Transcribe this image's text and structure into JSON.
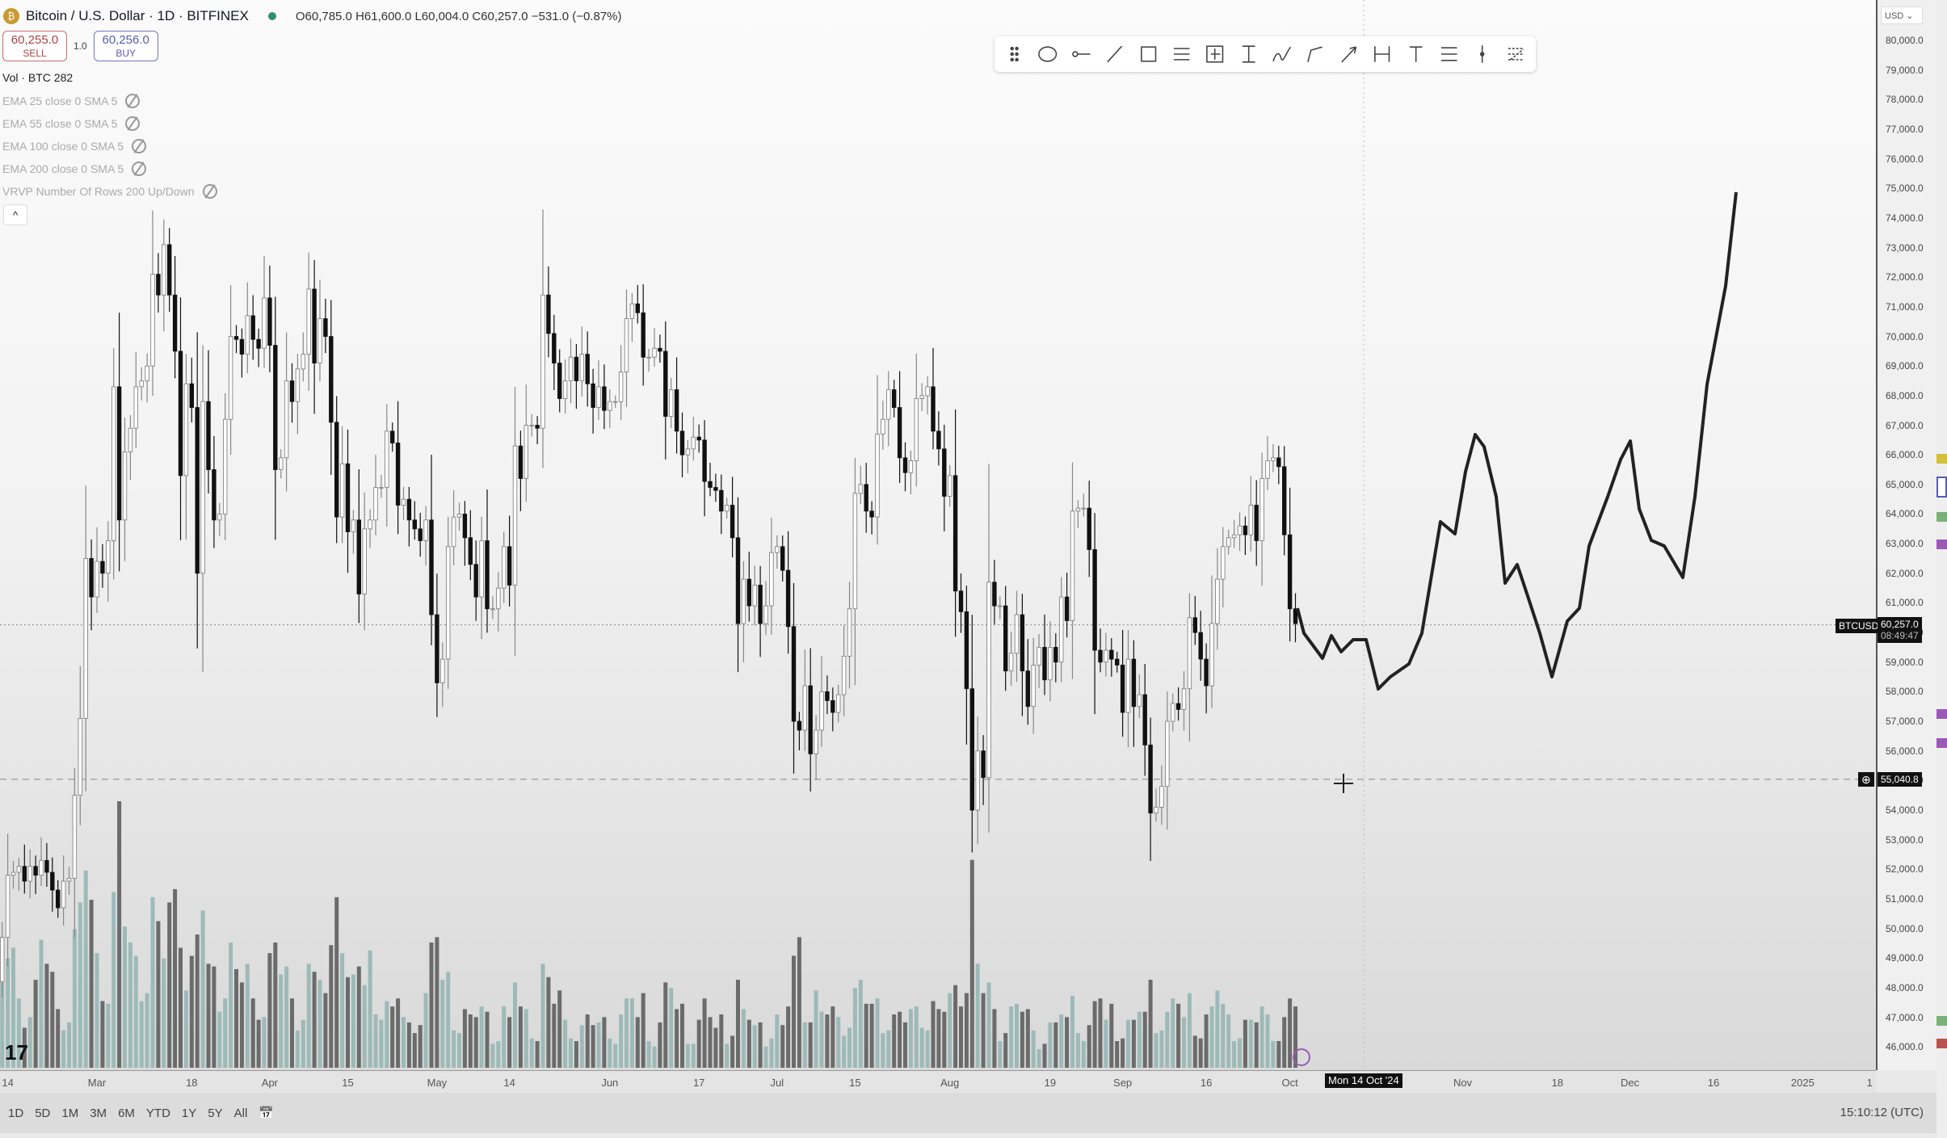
{
  "header": {
    "symbol": "Bitcoin / U.S. Dollar · 1D · BITFINEX",
    "coin_icon": "bitcoin-icon",
    "ohlc": "O60,785.0 H61,600.0 L60,004.0 C60,257.0 −531.0 (−0.87%)"
  },
  "trade": {
    "sell_price": "60,255.0",
    "sell_label": "SELL",
    "qty": "1.0",
    "buy_price": "60,256.0",
    "buy_label": "BUY"
  },
  "indicators": [
    "Vol · BTC  282",
    "EMA 25 close 0 SMA 5",
    "EMA 55 close 0 SMA 5",
    "EMA 100 close 0 SMA 5",
    "EMA 200 close 0 SMA 5",
    "VRVP Number Of Rows 200 Up/Down"
  ],
  "toolbar_icons": [
    "drag-handle-icon",
    "ellipse-icon",
    "ray-icon",
    "trend-line-icon",
    "rectangle-icon",
    "parallel-channel-icon",
    "long-position-icon",
    "date-price-range-icon",
    "brush-icon",
    "path-icon",
    "arrow-icon",
    "date-range-icon",
    "text-icon",
    "fib-retracement-icon",
    "vertical-line-icon",
    "regression-trend-icon"
  ],
  "price_axis": {
    "currency": "USD",
    "current_tag": "BTCUSD",
    "current_price": "60,257.0",
    "countdown": "08:49:47",
    "crosshair_price": "55,040.8"
  },
  "time_axis": {
    "crosshair_date": "Mon 14 Oct '24"
  },
  "bottom": {
    "ranges": [
      "1D",
      "5D",
      "1M",
      "3M",
      "6M",
      "YTD",
      "1Y",
      "5Y",
      "All"
    ],
    "time": "15:10:12 (UTC)"
  },
  "colors": {
    "up": "#ffffff",
    "down": "#111111",
    "vol_up": "#9dbab8",
    "vol_down": "#6b6b6b",
    "drawing": "#222222"
  },
  "chart_data": {
    "type": "candlestick",
    "start_date": "2024-02-13",
    "ylim": [
      45500,
      80500
    ],
    "yticks": [
      80000,
      79000,
      78000,
      77000,
      76000,
      75000,
      74000,
      73000,
      72000,
      71000,
      70000,
      69000,
      68000,
      67000,
      66000,
      65000,
      64000,
      63000,
      62000,
      61000,
      60000,
      59000,
      58000,
      57000,
      56000,
      55000,
      54000,
      53000,
      52000,
      51000,
      50000,
      49000,
      48000,
      47000,
      46000
    ],
    "xticks": [
      {
        "label": "14",
        "date": "2024-02-14"
      },
      {
        "label": "Mar",
        "date": "2024-03-01"
      },
      {
        "label": "18",
        "date": "2024-03-18"
      },
      {
        "label": "Apr",
        "date": "2024-04-01"
      },
      {
        "label": "15",
        "date": "2024-04-15"
      },
      {
        "label": "May",
        "date": "2024-05-01"
      },
      {
        "label": "14",
        "date": "2024-05-14"
      },
      {
        "label": "Jun",
        "date": "2024-06-01"
      },
      {
        "label": "17",
        "date": "2024-06-17"
      },
      {
        "label": "Jul",
        "date": "2024-07-01"
      },
      {
        "label": "15",
        "date": "2024-07-15"
      },
      {
        "label": "Aug",
        "date": "2024-08-01"
      },
      {
        "label": "19",
        "date": "2024-08-19"
      },
      {
        "label": "Sep",
        "date": "2024-09-01"
      },
      {
        "label": "16",
        "date": "2024-09-16"
      },
      {
        "label": "Oct",
        "date": "2024-10-01"
      },
      {
        "label": "Nov",
        "date": "2024-11-01"
      },
      {
        "label": "18",
        "date": "2024-11-18"
      },
      {
        "label": "Dec",
        "date": "2024-12-01"
      },
      {
        "label": "16",
        "date": "2024-12-16"
      },
      {
        "label": "2025",
        "date": "2025-01-01"
      },
      {
        "label": "1",
        "date": "2025-01-13"
      }
    ],
    "close": [
      49700,
      51800,
      51900,
      52100,
      51600,
      52100,
      51800,
      52300,
      51900,
      51300,
      50700,
      51600,
      51700,
      54500,
      57100,
      62500,
      61200,
      62400,
      62000,
      63100,
      68300,
      63800,
      66100,
      66900,
      68300,
      68500,
      69000,
      72100,
      71400,
      73100,
      71400,
      69500,
      65300,
      68400,
      67600,
      62000,
      67800,
      65500,
      63800,
      64000,
      67200,
      70000,
      69900,
      69400,
      70700,
      69900,
      69600,
      71300,
      69700,
      65500,
      65900,
      68500,
      67800,
      68900,
      69400,
      71600,
      69100,
      70600,
      70000,
      67100,
      63900,
      65700,
      63400,
      63800,
      61300,
      63500,
      63800,
      64900,
      64900,
      66800,
      66400,
      64300,
      64500,
      63800,
      63500,
      63100,
      63800,
      60600,
      58300,
      59100,
      62900,
      63900,
      64000,
      63200,
      62300,
      61200,
      63100,
      60800,
      60800,
      61500,
      62900,
      61600,
      66300,
      65200,
      67000,
      67000,
      66900,
      71400,
      70100,
      69100,
      67900,
      68500,
      69300,
      68500,
      69400,
      68400,
      67600,
      68300,
      67500,
      67800,
      67800,
      68800,
      70600,
      71100,
      70800,
      69300,
      69300,
      69600,
      69500,
      67300,
      68200,
      66800,
      66000,
      66200,
      66600,
      66500,
      65100,
      64900,
      64800,
      64100,
      64300,
      63200,
      60300,
      61800,
      60900,
      61600,
      60300,
      60900,
      62700,
      62900,
      62100,
      60200,
      57000,
      56700,
      58200,
      55900,
      56700,
      58000,
      57700,
      57300,
      57900,
      59200,
      60800,
      64700,
      65000,
      64100,
      63900,
      66700,
      67200,
      68200,
      67600,
      65900,
      65400,
      65800,
      67900,
      68000,
      68300,
      66800,
      66200,
      64600,
      65300,
      61400,
      60700,
      58100,
      54000,
      56000,
      55100,
      61700,
      60900,
      60900,
      58700,
      59300,
      60600,
      58700,
      57500,
      58900,
      59500,
      58400,
      59500,
      59000,
      61200,
      60400,
      64100,
      64200,
      64200,
      62800,
      59400,
      59000,
      59400,
      59100,
      58900,
      57300,
      59100,
      57500,
      57900,
      56200,
      53900,
      54100,
      54800,
      57000,
      57600,
      57400,
      58100,
      60500,
      60000,
      59100,
      58200,
      60300,
      61800,
      62900,
      63200,
      63300,
      63600,
      63300,
      64300,
      63100,
      65200,
      65800,
      65900,
      65600,
      63300,
      60800,
      60300
    ],
    "volume": [
      3200,
      4100,
      4500,
      2600,
      1500,
      1900,
      3300,
      4800,
      3900,
      3600,
      2200,
      1400,
      1700,
      5200,
      6200,
      7400,
      6300,
      4300,
      2500,
      2400,
      6600,
      10000,
      5300,
      4700,
      4200,
      2500,
      2800,
      6400,
      5500,
      4100,
      6200,
      6700,
      4500,
      2900,
      4200,
      5000,
      5900,
      3900,
      3800,
      2100,
      2600,
      4700,
      3700,
      3200,
      3900,
      2600,
      1800,
      1900,
      4300,
      4700,
      3500,
      3800,
      2600,
      1400,
      1800,
      3900,
      3600,
      3300,
      2800,
      4600,
      6400,
      4300,
      3400,
      3500,
      3800,
      3100,
      4400,
      2000,
      1800,
      2500,
      2300,
      2600,
      1900,
      1700,
      1300,
      1600,
      2800,
      4700,
      4900,
      3300,
      3600,
      1400,
      1300,
      2200,
      2000,
      1900,
      2300,
      2100,
      900,
      1000,
      2300,
      1900,
      3200,
      2300,
      2200,
      1100,
      1000,
      3900,
      3400,
      2400,
      2900,
      1800,
      1100,
      1000,
      1600,
      2000,
      1600,
      1700,
      1900,
      1100,
      900,
      2000,
      2600,
      2600,
      1900,
      2800,
      1000,
      800,
      1700,
      3200,
      3000,
      2200,
      2400,
      900,
      900,
      1800,
      2600,
      1900,
      1500,
      2000,
      900,
      1200,
      3300,
      2200,
      1800,
      1600,
      1700,
      800,
      1100,
      2000,
      1600,
      2300,
      4200,
      4900,
      1700,
      1700,
      2900,
      2100,
      2000,
      2300,
      1900,
      1200,
      1500,
      3000,
      3300,
      2400,
      2400,
      2600,
      1300,
      1400,
      2000,
      2100,
      1700,
      2200,
      2300,
      1500,
      1400,
      2500,
      2200,
      2100,
      2800,
      3100,
      2300,
      2800,
      7800,
      3900,
      2800,
      3200,
      2200,
      1000,
      1300,
      2300,
      2400,
      2100,
      2200,
      1400,
      700,
      900,
      1700,
      1700,
      2000,
      1900,
      2700,
      1300,
      1000,
      1600,
      2500,
      2600,
      1800,
      2400,
      1000,
      1100,
      1800,
      1800,
      2100,
      2100,
      3300,
      1300,
      1400,
      2100,
      2600,
      2400,
      1900,
      2800,
      1200,
      1100,
      2000,
      2300,
      2900,
      2400,
      2000,
      1000,
      1100,
      1800,
      1800,
      1700,
      2300,
      2000,
      1000,
      1000,
      1900,
      2600,
      2300
    ]
  }
}
